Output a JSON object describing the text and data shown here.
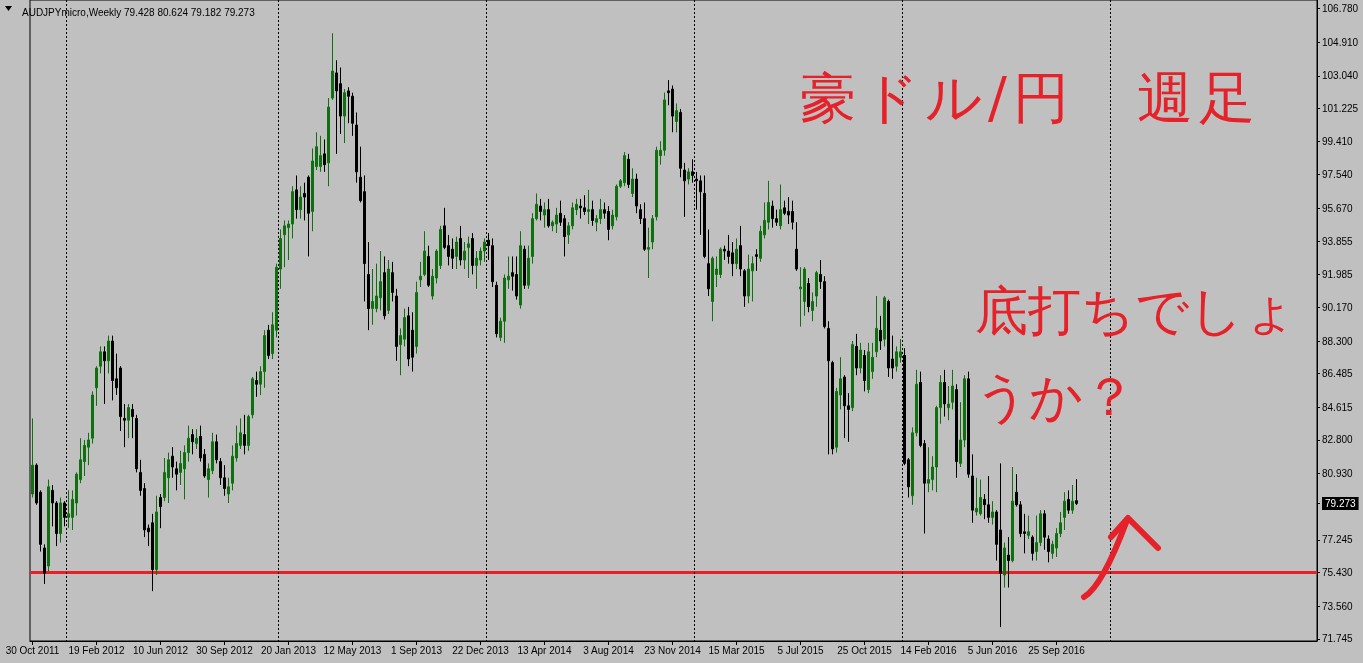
{
  "chart_data": {
    "type": "candlestick",
    "title": "AUDJPYmicro,Weekly 79.428 80.624 79.182 79.273",
    "annotations": [
      "豪ドル/円　週足",
      "底打ちでしょうか？"
    ],
    "x": [
      "2011-10-30",
      "2011-11-06",
      "2011-11-13",
      "2011-11-20",
      "2011-11-27",
      "2011-12-04",
      "2011-12-11",
      "2011-12-18",
      "2011-12-25",
      "2012-01-01",
      "2012-01-08",
      "2012-01-15",
      "2012-01-22",
      "2012-01-29",
      "2012-02-05",
      "2012-02-12",
      "2012-02-19",
      "2012-02-26",
      "2012-03-04",
      "2012-03-11",
      "2012-03-18",
      "2012-03-25",
      "2012-04-01",
      "2012-04-08",
      "2012-04-15",
      "2012-04-22",
      "2012-04-29",
      "2012-05-06",
      "2012-05-13",
      "2012-05-20",
      "2012-05-27",
      "2012-06-03",
      "2012-06-10",
      "2012-06-17",
      "2012-06-24",
      "2012-07-01",
      "2012-07-08",
      "2012-07-15",
      "2012-07-22",
      "2012-07-29",
      "2012-08-05",
      "2012-08-12",
      "2012-08-19",
      "2012-08-26",
      "2012-09-02",
      "2012-09-09",
      "2012-09-16",
      "2012-09-23",
      "2012-09-30",
      "2012-10-07",
      "2012-10-14",
      "2012-10-21",
      "2012-10-28",
      "2012-11-04",
      "2012-11-11",
      "2012-11-18",
      "2012-11-25",
      "2012-12-02",
      "2012-12-09",
      "2012-12-16",
      "2012-12-23",
      "2012-12-30",
      "2013-01-06",
      "2013-01-13",
      "2013-01-20",
      "2013-01-27",
      "2013-02-03",
      "2013-02-10",
      "2013-02-17",
      "2013-02-24",
      "2013-03-03",
      "2013-03-10",
      "2013-03-17",
      "2013-03-24",
      "2013-03-31",
      "2013-04-07",
      "2013-04-14",
      "2013-04-21",
      "2013-04-28",
      "2013-05-05",
      "2013-05-12",
      "2013-05-19",
      "2013-05-26",
      "2013-06-02",
      "2013-06-09",
      "2013-06-16",
      "2013-06-23",
      "2013-06-30",
      "2013-07-07",
      "2013-07-14",
      "2013-07-21",
      "2013-07-28",
      "2013-08-04",
      "2013-08-11",
      "2013-08-18",
      "2013-08-25",
      "2013-09-01",
      "2013-09-08",
      "2013-09-15",
      "2013-09-22",
      "2013-09-29",
      "2013-10-06",
      "2013-10-13",
      "2013-10-20",
      "2013-10-27",
      "2013-11-03",
      "2013-11-10",
      "2013-11-17",
      "2013-11-24",
      "2013-12-01",
      "2013-12-08",
      "2013-12-15",
      "2013-12-22",
      "2013-12-29",
      "2014-01-05",
      "2014-01-12",
      "2014-01-19",
      "2014-01-26",
      "2014-02-02",
      "2014-02-09",
      "2014-02-16",
      "2014-02-23",
      "2014-03-02",
      "2014-03-09",
      "2014-03-16",
      "2014-03-23",
      "2014-03-30",
      "2014-04-06",
      "2014-04-13",
      "2014-04-20",
      "2014-04-27",
      "2014-05-04",
      "2014-05-11",
      "2014-05-18",
      "2014-05-25",
      "2014-06-01",
      "2014-06-08",
      "2014-06-15",
      "2014-06-22",
      "2014-06-29",
      "2014-07-06",
      "2014-07-13",
      "2014-07-20",
      "2014-07-27",
      "2014-08-03",
      "2014-08-10",
      "2014-08-17",
      "2014-08-24",
      "2014-08-31",
      "2014-09-07",
      "2014-09-14",
      "2014-09-21",
      "2014-09-28",
      "2014-10-05",
      "2014-10-12",
      "2014-10-19",
      "2014-10-26",
      "2014-11-02",
      "2014-11-09",
      "2014-11-16",
      "2014-11-23",
      "2014-11-30",
      "2014-12-07",
      "2014-12-14",
      "2014-12-21",
      "2014-12-28",
      "2015-01-04",
      "2015-01-11",
      "2015-01-18",
      "2015-01-25",
      "2015-02-01",
      "2015-02-08",
      "2015-02-15",
      "2015-02-22",
      "2015-03-01",
      "2015-03-08",
      "2015-03-15",
      "2015-03-22",
      "2015-03-29",
      "2015-04-05",
      "2015-04-12",
      "2015-04-19",
      "2015-04-26",
      "2015-05-03",
      "2015-05-10",
      "2015-05-17",
      "2015-05-24",
      "2015-05-31",
      "2015-06-07",
      "2015-06-14",
      "2015-06-21",
      "2015-06-28",
      "2015-07-05",
      "2015-07-12",
      "2015-07-19",
      "2015-07-26",
      "2015-08-02",
      "2015-08-09",
      "2015-08-16",
      "2015-08-23",
      "2015-08-30",
      "2015-09-06",
      "2015-09-13",
      "2015-09-20",
      "2015-09-27",
      "2015-10-04",
      "2015-10-11",
      "2015-10-18",
      "2015-10-25",
      "2015-11-01",
      "2015-11-08",
      "2015-11-15",
      "2015-11-22",
      "2015-11-29",
      "2015-12-06",
      "2015-12-13",
      "2015-12-20",
      "2015-12-27",
      "2016-01-03",
      "2016-01-10",
      "2016-01-17",
      "2016-01-24",
      "2016-01-31",
      "2016-02-07",
      "2016-02-14",
      "2016-02-21",
      "2016-02-28",
      "2016-03-06",
      "2016-03-13",
      "2016-03-20",
      "2016-03-27",
      "2016-04-03",
      "2016-04-10",
      "2016-04-17",
      "2016-04-24",
      "2016-05-01",
      "2016-05-08",
      "2016-05-15",
      "2016-05-22",
      "2016-05-29",
      "2016-06-05",
      "2016-06-12",
      "2016-06-19",
      "2016-06-26",
      "2016-07-03",
      "2016-07-10",
      "2016-07-17",
      "2016-07-24",
      "2016-07-31",
      "2016-08-07",
      "2016-08-14",
      "2016-08-21",
      "2016-08-28",
      "2016-09-04",
      "2016-09-11",
      "2016-09-18",
      "2016-09-25",
      "2016-10-02",
      "2016-10-09",
      "2016-10-16",
      "2016-10-23",
      "2016-10-30"
    ],
    "ohlc": [
      [
        79.8,
        84.0,
        79.6,
        81.4
      ],
      [
        81.4,
        81.5,
        79.2,
        79.3
      ],
      [
        79.9,
        80.0,
        76.6,
        77.0
      ],
      [
        76.8,
        77.0,
        74.8,
        75.4
      ],
      [
        75.8,
        80.6,
        75.5,
        80.2
      ],
      [
        80.0,
        80.3,
        78.0,
        79.3
      ],
      [
        79.3,
        79.4,
        76.9,
        77.6
      ],
      [
        77.6,
        79.6,
        77.1,
        79.3
      ],
      [
        79.3,
        79.4,
        78.0,
        78.5
      ],
      [
        78.5,
        80.0,
        77.9,
        78.7
      ],
      [
        78.5,
        80.0,
        77.8,
        79.5
      ],
      [
        79.3,
        81.0,
        78.6,
        80.9
      ],
      [
        80.6,
        82.9,
        80.4,
        81.7
      ],
      [
        81.6,
        82.8,
        80.8,
        82.5
      ],
      [
        82.4,
        83.2,
        81.4,
        82.8
      ],
      [
        82.9,
        85.5,
        82.6,
        85.3
      ],
      [
        85.7,
        86.9,
        84.7,
        86.8
      ],
      [
        86.9,
        88.0,
        86.5,
        87.7
      ],
      [
        87.7,
        88.0,
        84.8,
        87.2
      ],
      [
        87.2,
        88.6,
        86.5,
        88.3
      ],
      [
        88.3,
        88.6,
        85.0,
        86.1
      ],
      [
        86.2,
        87.6,
        85.3,
        85.7
      ],
      [
        86.8,
        86.9,
        83.3,
        84.1
      ],
      [
        84.0,
        84.8,
        82.4,
        83.9
      ],
      [
        83.9,
        84.8,
        82.9,
        84.6
      ],
      [
        84.5,
        84.8,
        82.9,
        84.1
      ],
      [
        84.0,
        84.2,
        81.0,
        81.2
      ],
      [
        81.0,
        81.7,
        79.7,
        80.0
      ],
      [
        80.1,
        80.4,
        77.4,
        77.8
      ],
      [
        77.9,
        78.1,
        76.9,
        77.7
      ],
      [
        78.2,
        78.7,
        74.4,
        75.6
      ],
      [
        75.6,
        79.7,
        75.3,
        78.8
      ],
      [
        79.6,
        79.8,
        77.9,
        79.1
      ],
      [
        79.6,
        81.8,
        79.4,
        81.0
      ],
      [
        80.7,
        82.1,
        79.3,
        81.7
      ],
      [
        81.9,
        82.4,
        80.7,
        81.3
      ],
      [
        81.2,
        81.6,
        80.0,
        80.9
      ],
      [
        81.0,
        82.2,
        80.3,
        81.5
      ],
      [
        81.2,
        82.5,
        79.5,
        82.1
      ],
      [
        82.1,
        83.6,
        81.6,
        82.9
      ],
      [
        83.1,
        83.4,
        82.0,
        82.7
      ],
      [
        82.6,
        83.4,
        82.3,
        82.9
      ],
      [
        83.0,
        83.6,
        81.6,
        81.8
      ],
      [
        82.0,
        82.3,
        80.7,
        80.8
      ],
      [
        80.6,
        81.5,
        79.6,
        81.2
      ],
      [
        81.1,
        83.2,
        80.9,
        82.7
      ],
      [
        82.7,
        83.1,
        81.5,
        81.7
      ],
      [
        81.6,
        81.8,
        80.3,
        80.7
      ],
      [
        80.7,
        81.4,
        79.7,
        80.1
      ],
      [
        79.8,
        80.7,
        79.3,
        80.2
      ],
      [
        80.4,
        82.5,
        80.0,
        81.9
      ],
      [
        81.8,
        83.6,
        81.6,
        82.6
      ],
      [
        82.5,
        84.0,
        82.3,
        83.2
      ],
      [
        83.1,
        84.2,
        82.0,
        82.5
      ],
      [
        82.5,
        84.2,
        82.2,
        84.1
      ],
      [
        84.2,
        86.3,
        84.0,
        86.2
      ],
      [
        86.1,
        86.6,
        85.2,
        85.9
      ],
      [
        85.9,
        86.9,
        85.3,
        86.6
      ],
      [
        86.6,
        88.9,
        85.7,
        88.6
      ],
      [
        88.9,
        89.2,
        87.3,
        87.5
      ],
      [
        87.6,
        89.9,
        87.3,
        89.2
      ],
      [
        88.9,
        92.6,
        88.5,
        92.4
      ],
      [
        92.3,
        94.5,
        91.2,
        94.0
      ],
      [
        94.2,
        95.0,
        92.4,
        94.7
      ],
      [
        94.6,
        95.0,
        92.8,
        94.8
      ],
      [
        94.8,
        96.9,
        94.0,
        96.6
      ],
      [
        96.7,
        97.5,
        95.1,
        95.6
      ],
      [
        95.6,
        96.9,
        95.1,
        96.3
      ],
      [
        96.5,
        97.1,
        95.0,
        96.3
      ],
      [
        97.4,
        97.5,
        93.0,
        95.4
      ],
      [
        95.5,
        99.0,
        94.4,
        98.3
      ],
      [
        98.0,
        99.9,
        97.8,
        99.1
      ],
      [
        98.0,
        99.7,
        97.7,
        98.6
      ],
      [
        98.7,
        99.5,
        97.7,
        98.1
      ],
      [
        98.2,
        101.8,
        96.9,
        101.3
      ],
      [
        101.8,
        105.4,
        101.7,
        103.3
      ],
      [
        103.2,
        103.9,
        98.7,
        102.2
      ],
      [
        102.6,
        103.5,
        99.8,
        100.8
      ],
      [
        100.8,
        102.3,
        99.3,
        102.1
      ],
      [
        102.2,
        102.4,
        100.4,
        101.9
      ],
      [
        101.9,
        102.1,
        99.7,
        100.4
      ],
      [
        100.3,
        101.0,
        97.1,
        97.7
      ],
      [
        97.4,
        99.1,
        96.0,
        96.1
      ],
      [
        96.6,
        97.5,
        90.5,
        92.6
      ],
      [
        92.0,
        93.8,
        88.9,
        90.1
      ],
      [
        90.1,
        92.3,
        89.2,
        90.5
      ],
      [
        90.1,
        92.6,
        89.9,
        90.8
      ],
      [
        90.7,
        93.3,
        90.0,
        91.6
      ],
      [
        92.1,
        93.0,
        89.5,
        89.7
      ],
      [
        90.0,
        92.8,
        89.8,
        92.3
      ],
      [
        92.1,
        92.7,
        90.5,
        91.0
      ],
      [
        90.8,
        91.2,
        87.2,
        88.0
      ],
      [
        88.1,
        89.0,
        86.4,
        88.6
      ],
      [
        88.4,
        90.1,
        88.0,
        89.6
      ],
      [
        89.7,
        90.2,
        86.9,
        87.3
      ],
      [
        88.9,
        89.9,
        86.6,
        87.4
      ],
      [
        88.0,
        91.6,
        87.6,
        91.0
      ],
      [
        91.7,
        92.7,
        91.3,
        91.9
      ],
      [
        92.0,
        94.4,
        91.9,
        93.3
      ],
      [
        93.0,
        93.6,
        91.3,
        91.4
      ],
      [
        90.8,
        92.3,
        90.6,
        91.9
      ],
      [
        91.8,
        93.4,
        91.5,
        93.3
      ],
      [
        92.5,
        94.7,
        92.3,
        94.5
      ],
      [
        94.7,
        95.7,
        93.4,
        93.5
      ],
      [
        93.6,
        94.2,
        92.5,
        93.0
      ],
      [
        93.4,
        94.0,
        92.3,
        92.9
      ],
      [
        93.0,
        94.1,
        92.3,
        93.8
      ],
      [
        94.0,
        94.7,
        92.5,
        92.8
      ],
      [
        92.8,
        93.8,
        92.3,
        93.3
      ],
      [
        93.5,
        94.1,
        91.8,
        93.7
      ],
      [
        94.0,
        94.3,
        92.0,
        92.5
      ],
      [
        92.5,
        93.3,
        91.2,
        92.9
      ],
      [
        92.8,
        93.5,
        92.5,
        93.3
      ],
      [
        93.3,
        94.0,
        92.7,
        93.8
      ],
      [
        93.9,
        94.3,
        92.8,
        93.6
      ],
      [
        93.6,
        94.0,
        91.3,
        91.6
      ],
      [
        91.4,
        91.6,
        88.5,
        88.7
      ],
      [
        88.5,
        89.6,
        88.3,
        89.4
      ],
      [
        89.4,
        92.0,
        88.2,
        91.8
      ],
      [
        91.7,
        93.0,
        91.2,
        91.9
      ],
      [
        92.1,
        93.0,
        91.1,
        91.9
      ],
      [
        92.0,
        93.0,
        90.6,
        90.8
      ],
      [
        90.3,
        94.4,
        90.1,
        93.6
      ],
      [
        93.4,
        93.6,
        91.2,
        91.4
      ],
      [
        91.4,
        93.6,
        91.2,
        92.9
      ],
      [
        93.0,
        95.4,
        92.6,
        95.1
      ],
      [
        95.1,
        96.5,
        95.0,
        95.9
      ],
      [
        95.8,
        96.2,
        95.0,
        95.5
      ],
      [
        95.3,
        96.0,
        94.6,
        95.6
      ],
      [
        95.6,
        96.2,
        94.6,
        94.7
      ],
      [
        94.7,
        95.0,
        94.4,
        94.9
      ],
      [
        94.8,
        95.7,
        94.3,
        95.3
      ],
      [
        95.4,
        96.1,
        94.7,
        94.9
      ],
      [
        95.1,
        95.3,
        93.0,
        94.1
      ],
      [
        94.2,
        94.9,
        93.7,
        94.7
      ],
      [
        94.7,
        96.0,
        94.5,
        95.7
      ],
      [
        95.6,
        96.2,
        95.3,
        95.9
      ],
      [
        95.8,
        96.2,
        95.1,
        95.7
      ],
      [
        95.7,
        96.4,
        95.3,
        95.5
      ],
      [
        95.5,
        96.7,
        94.8,
        95.6
      ],
      [
        95.6,
        96.1,
        94.7,
        95.0
      ],
      [
        94.9,
        95.3,
        94.4,
        95.1
      ],
      [
        95.1,
        96.2,
        94.8,
        95.6
      ],
      [
        95.6,
        96.0,
        95.1,
        95.4
      ],
      [
        95.5,
        95.8,
        93.9,
        94.5
      ],
      [
        94.7,
        95.6,
        94.5,
        95.3
      ],
      [
        95.2,
        97.0,
        95.0,
        96.9
      ],
      [
        96.9,
        97.3,
        96.8,
        97.2
      ],
      [
        97.1,
        98.8,
        96.9,
        98.6
      ],
      [
        98.4,
        98.7,
        96.8,
        97.0
      ],
      [
        96.5,
        97.9,
        96.3,
        97.3
      ],
      [
        97.3,
        97.6,
        95.4,
        95.8
      ],
      [
        95.6,
        95.9,
        94.8,
        95.1
      ],
      [
        95.1,
        96.0,
        93.3,
        93.4
      ],
      [
        93.4,
        94.6,
        91.8,
        93.5
      ],
      [
        93.8,
        95.3,
        93.4,
        95.1
      ],
      [
        95.2,
        99.1,
        95.0,
        98.9
      ],
      [
        98.6,
        99.4,
        98.1,
        98.9
      ],
      [
        98.9,
        102.1,
        98.6,
        101.7
      ],
      [
        102.2,
        102.8,
        101.4,
        102.1
      ],
      [
        102.3,
        102.5,
        99.9,
        100.8
      ],
      [
        100.5,
        101.5,
        99.9,
        101.1
      ],
      [
        101.0,
        101.2,
        97.4,
        97.9
      ],
      [
        97.8,
        98.2,
        95.2,
        97.2
      ],
      [
        97.3,
        97.9,
        97.0,
        97.7
      ],
      [
        97.7,
        98.4,
        97.1,
        97.5
      ],
      [
        97.3,
        97.7,
        95.6,
        97.2
      ],
      [
        97.2,
        97.5,
        94.2,
        96.6
      ],
      [
        96.5,
        97.5,
        92.9,
        93.0
      ],
      [
        92.6,
        94.5,
        90.8,
        91.2
      ],
      [
        90.5,
        93.0,
        89.4,
        92.9
      ],
      [
        92.0,
        93.0,
        91.3,
        92.3
      ],
      [
        92.0,
        93.5,
        91.8,
        93.4
      ],
      [
        93.4,
        93.6,
        92.8,
        93.3
      ],
      [
        93.3,
        94.2,
        92.6,
        93.0
      ],
      [
        93.2,
        93.8,
        91.9,
        92.6
      ],
      [
        92.6,
        94.0,
        92.3,
        93.4
      ],
      [
        93.6,
        94.7,
        91.9,
        92.3
      ],
      [
        92.2,
        92.3,
        90.2,
        90.8
      ],
      [
        90.8,
        93.1,
        90.4,
        92.3
      ],
      [
        92.2,
        93.0,
        90.5,
        92.6
      ],
      [
        93.1,
        93.4,
        92.2,
        93.0
      ],
      [
        92.9,
        94.7,
        92.7,
        94.4
      ],
      [
        94.2,
        96.0,
        94.0,
        95.0
      ],
      [
        94.9,
        97.2,
        94.5,
        96.0
      ],
      [
        95.8,
        96.1,
        94.6,
        95.1
      ],
      [
        95.1,
        95.6,
        94.7,
        94.9
      ],
      [
        94.7,
        97.0,
        94.5,
        95.6
      ],
      [
        95.7,
        96.1,
        95.3,
        95.4
      ],
      [
        95.5,
        96.3,
        94.8,
        95.3
      ],
      [
        95.5,
        96.1,
        94.5,
        94.9
      ],
      [
        93.4,
        94.9,
        92.2,
        92.3
      ],
      [
        91.2,
        92.4,
        89.1,
        91.3
      ],
      [
        90.5,
        92.4,
        89.7,
        92.3
      ],
      [
        91.5,
        91.8,
        89.9,
        90.2
      ],
      [
        90.0,
        91.0,
        89.4,
        90.5
      ],
      [
        90.8,
        92.2,
        90.2,
        92.1
      ],
      [
        92.0,
        92.8,
        91.2,
        91.6
      ],
      [
        91.6,
        91.9,
        89.0,
        89.1
      ],
      [
        89.0,
        89.4,
        82.0,
        87.2
      ],
      [
        87.1,
        87.2,
        82.0,
        82.3
      ],
      [
        82.4,
        85.7,
        82.1,
        85.5
      ],
      [
        85.3,
        87.4,
        84.5,
        86.2
      ],
      [
        86.3,
        86.4,
        82.9,
        84.7
      ],
      [
        84.7,
        85.4,
        82.7,
        84.5
      ],
      [
        84.6,
        88.3,
        84.4,
        88.1
      ],
      [
        88.0,
        88.7,
        86.4,
        86.8
      ],
      [
        86.8,
        88.2,
        86.5,
        87.8
      ],
      [
        87.5,
        87.8,
        85.5,
        86.1
      ],
      [
        85.6,
        88.2,
        85.4,
        87.7
      ],
      [
        86.6,
        88.2,
        86.2,
        87.4
      ],
      [
        87.7,
        90.8,
        87.4,
        89.0
      ],
      [
        88.9,
        89.7,
        87.8,
        88.3
      ],
      [
        88.4,
        90.8,
        88.0,
        90.7
      ],
      [
        90.5,
        90.6,
        86.3,
        86.8
      ],
      [
        87.3,
        88.6,
        86.2,
        86.8
      ],
      [
        86.9,
        88.0,
        86.6,
        87.7
      ],
      [
        87.4,
        88.4,
        87.1,
        87.7
      ],
      [
        87.5,
        87.9,
        81.4,
        81.5
      ],
      [
        81.7,
        81.8,
        79.6,
        80.2
      ],
      [
        79.7,
        83.5,
        79.2,
        83.2
      ],
      [
        83.2,
        86.7,
        83.0,
        85.9
      ],
      [
        86.0,
        86.6,
        82.4,
        82.5
      ],
      [
        82.6,
        82.8,
        77.6,
        80.4
      ],
      [
        80.4,
        82.4,
        79.9,
        80.6
      ],
      [
        80.6,
        81.9,
        80.0,
        81.3
      ],
      [
        81.3,
        84.7,
        79.9,
        84.6
      ],
      [
        84.6,
        86.4,
        83.7,
        86.0
      ],
      [
        86.0,
        86.7,
        84.1,
        84.8
      ],
      [
        84.6,
        85.8,
        83.9,
        84.8
      ],
      [
        84.9,
        86.7,
        84.5,
        85.8
      ],
      [
        85.6,
        85.9,
        80.7,
        81.6
      ],
      [
        81.5,
        84.9,
        81.3,
        82.8
      ],
      [
        82.8,
        86.4,
        82.4,
        86.2
      ],
      [
        86.2,
        86.6,
        80.7,
        80.9
      ],
      [
        80.8,
        82.0,
        78.2,
        78.9
      ],
      [
        78.8,
        80.7,
        78.6,
        79.0
      ],
      [
        78.7,
        80.6,
        78.6,
        79.6
      ],
      [
        79.5,
        79.8,
        78.4,
        79.2
      ],
      [
        79.2,
        80.8,
        78.2,
        78.5
      ],
      [
        78.5,
        79.4,
        78.1,
        78.8
      ],
      [
        78.8,
        78.9,
        76.1,
        77.0
      ],
      [
        77.8,
        81.5,
        72.4,
        75.4
      ],
      [
        75.3,
        77.1,
        74.6,
        76.8
      ],
      [
        76.4,
        77.4,
        74.6,
        76.1
      ],
      [
        76.1,
        81.3,
        76.0,
        79.4
      ],
      [
        79.9,
        80.9,
        79.1,
        79.2
      ],
      [
        79.2,
        79.4,
        77.4,
        77.6
      ],
      [
        77.7,
        78.7,
        76.5,
        77.6
      ],
      [
        77.5,
        78.6,
        77.3,
        77.7
      ],
      [
        77.4,
        77.5,
        76.1,
        76.5
      ],
      [
        76.6,
        78.6,
        76.1,
        77.1
      ],
      [
        77.1,
        78.9,
        76.9,
        78.7
      ],
      [
        78.7,
        78.9,
        76.7,
        77.4
      ],
      [
        77.3,
        77.5,
        76.0,
        76.6
      ],
      [
        76.5,
        77.2,
        76.2,
        77.0
      ],
      [
        76.8,
        77.9,
        76.3,
        77.6
      ],
      [
        77.6,
        78.8,
        77.4,
        78.2
      ],
      [
        78.5,
        79.9,
        77.8,
        79.4
      ],
      [
        79.5,
        80.0,
        78.7,
        78.9
      ],
      [
        78.9,
        80.3,
        78.7,
        79.4
      ],
      [
        79.428,
        80.624,
        79.182,
        79.273
      ]
    ],
    "colors": [
      "#107010",
      "#000000",
      "#000000",
      "#000000",
      "#107010",
      "#000000",
      "#000000",
      "#107010",
      "#000000",
      "#107010",
      "#107010",
      "#107010",
      "#107010",
      "#107010",
      "#107010",
      "#107010",
      "#107010",
      "#107010",
      "#000000",
      "#107010",
      "#000000",
      "#000000",
      "#000000",
      "#000000",
      "#107010",
      "#000000",
      "#000000",
      "#000000",
      "#000000",
      "#000000",
      "#000000",
      "#107010",
      "#000000",
      "#107010",
      "#107010",
      "#000000",
      "#000000",
      "#107010",
      "#107010",
      "#107010",
      "#000000",
      "#107010",
      "#000000",
      "#000000",
      "#107010",
      "#107010",
      "#000000",
      "#000000",
      "#000000",
      "#107010",
      "#107010",
      "#107010",
      "#107010",
      "#000000",
      "#107010",
      "#107010",
      "#000000",
      "#107010",
      "#107010",
      "#000000",
      "#107010",
      "#107010",
      "#107010",
      "#107010",
      "#107010",
      "#107010",
      "#000000",
      "#107010",
      "#000000",
      "#000000",
      "#107010",
      "#107010",
      "#107010",
      "#000000",
      "#107010",
      "#107010",
      "#000000",
      "#000000",
      "#107010",
      "#000000",
      "#000000",
      "#000000",
      "#000000",
      "#000000",
      "#000000",
      "#107010",
      "#107010",
      "#107010",
      "#000000",
      "#107010",
      "#000000",
      "#000000",
      "#107010",
      "#107010",
      "#000000",
      "#000000",
      "#107010",
      "#107010",
      "#107010",
      "#000000",
      "#107010",
      "#107010",
      "#107010",
      "#000000",
      "#000000",
      "#000000",
      "#107010",
      "#000000",
      "#107010",
      "#107010",
      "#000000",
      "#107010",
      "#107010",
      "#107010",
      "#000000",
      "#000000",
      "#000000",
      "#107010",
      "#107010",
      "#107010",
      "#000000",
      "#000000",
      "#107010",
      "#000000",
      "#107010",
      "#107010",
      "#107010",
      "#000000",
      "#107010",
      "#000000",
      "#107010",
      "#107010",
      "#000000",
      "#000000",
      "#107010",
      "#107010",
      "#107010",
      "#000000",
      "#000000",
      "#107010",
      "#000000",
      "#107010",
      "#107010",
      "#000000",
      "#000000",
      "#107010",
      "#107010",
      "#107010",
      "#107010",
      "#000000",
      "#107010",
      "#000000",
      "#000000",
      "#000000",
      "#107010",
      "#107010",
      "#107010",
      "#107010",
      "#107010",
      "#000000",
      "#000000",
      "#107010",
      "#000000",
      "#000000",
      "#107010",
      "#000000",
      "#000000",
      "#000000",
      "#000000",
      "#000000",
      "#107010",
      "#107010",
      "#107010",
      "#000000",
      "#000000",
      "#000000",
      "#107010",
      "#000000",
      "#000000",
      "#107010",
      "#107010",
      "#000000",
      "#107010",
      "#107010",
      "#107010",
      "#000000",
      "#000000",
      "#107010",
      "#000000",
      "#000000",
      "#000000",
      "#000000",
      "#107010",
      "#107010",
      "#000000",
      "#107010",
      "#107010",
      "#000000",
      "#000000",
      "#000000",
      "#000000",
      "#107010",
      "#107010",
      "#000000",
      "#000000",
      "#107010",
      "#000000",
      "#107010",
      "#000000",
      "#107010",
      "#107010",
      "#107010",
      "#000000",
      "#107010",
      "#000000",
      "#000000",
      "#107010",
      "#107010",
      "#000000",
      "#000000",
      "#107010",
      "#107010",
      "#000000",
      "#000000",
      "#107010",
      "#107010",
      "#107010",
      "#107010",
      "#000000",
      "#107010",
      "#107010",
      "#000000",
      "#107010",
      "#107010",
      "#000000",
      "#000000",
      "#107010",
      "#107010",
      "#000000",
      "#000000",
      "#107010",
      "#000000",
      "#000000",
      "#107010",
      "#000000",
      "#107010",
      "#000000",
      "#000000",
      "#000000",
      "#107010",
      "#000000",
      "#107010",
      "#107010",
      "#000000",
      "#000000",
      "#107010",
      "#107010",
      "#107010",
      "#107010",
      "#000000",
      "#107010",
      "#000000"
    ],
    "xlim": [
      "2011-10-25T15:00",
      "2017-12-24T21:00"
    ],
    "xticks": [
      {
        "value": "2011-10-30",
        "label": "30 Oct 2011"
      },
      {
        "value": "2012-02-19",
        "label": "19 Feb 2012"
      },
      {
        "value": "2012-06-10",
        "label": "10 Jun 2012"
      },
      {
        "value": "2012-09-30",
        "label": "30 Sep 2012"
      },
      {
        "value": "2013-01-20",
        "label": "20 Jan 2013"
      },
      {
        "value": "2013-05-12",
        "label": "12 May 2013"
      },
      {
        "value": "2013-09-01",
        "label": "1 Sep 2013"
      },
      {
        "value": "2013-12-22",
        "label": "22 Dec 2013"
      },
      {
        "value": "2014-04-13",
        "label": "13 Apr 2014"
      },
      {
        "value": "2014-08-03",
        "label": "3 Aug 2014"
      },
      {
        "value": "2014-11-23",
        "label": "23 Nov 2014"
      },
      {
        "value": "2015-03-15",
        "label": "15 Mar 2015"
      },
      {
        "value": "2015-07-05",
        "label": "5 Jul 2015"
      },
      {
        "value": "2015-10-25",
        "label": "25 Oct 2015"
      },
      {
        "value": "2016-02-14",
        "label": "14 Feb 2016"
      },
      {
        "value": "2016-06-05",
        "label": "5 Jun 2016"
      },
      {
        "value": "2016-09-25",
        "label": "25 Sep 2016"
      }
    ],
    "ylim": [
      71.63,
      107.25
    ],
    "yticks": [
      {
        "value": 106.78,
        "label": "106.780"
      },
      {
        "value": 104.91,
        "label": "104.910"
      },
      {
        "value": 103.04,
        "label": "103.040"
      },
      101.225,
      {
        "value": 99.41,
        "label": "99.410"
      },
      {
        "value": 97.54,
        "label": "97.540"
      },
      {
        "value": 95.67,
        "label": "95.670"
      },
      93.855,
      91.985,
      {
        "value": 90.17,
        "label": "90.170"
      },
      {
        "value": 88.3,
        "label": "88.300"
      },
      86.485,
      84.615,
      {
        "value": 82.8,
        "label": "82.800"
      },
      {
        "value": 80.93,
        "label": "80.930"
      },
      79.273,
      77.245,
      {
        "value": 75.43,
        "label": "75.430"
      },
      {
        "value": 73.56,
        "label": "73.560"
      },
      71.745
    ],
    "ref_lines": [
      {
        "axis": "y",
        "value": 75.43,
        "color": "#e52129",
        "line_style": "solid"
      },
      {
        "axis": "x",
        "value": "2011-12-28T12:00",
        "color": "#000000",
        "line_style": "dotted"
      },
      {
        "axis": "x",
        "value": "2013-01-02T12:00",
        "color": "#000000",
        "line_style": "dotted"
      },
      {
        "axis": "x",
        "value": "2014-01-01T12:00",
        "color": "#000000",
        "line_style": "dotted"
      },
      {
        "axis": "x",
        "value": "2014-12-31T12:00",
        "color": "#000000",
        "line_style": "dotted"
      },
      {
        "axis": "x",
        "value": "2015-12-30T12:00",
        "color": "#000000",
        "line_style": "dotted"
      },
      {
        "axis": "x",
        "value": "2016-12-28T12:00",
        "color": "#000000",
        "line_style": "dotted"
      }
    ],
    "grid": false
  }
}
